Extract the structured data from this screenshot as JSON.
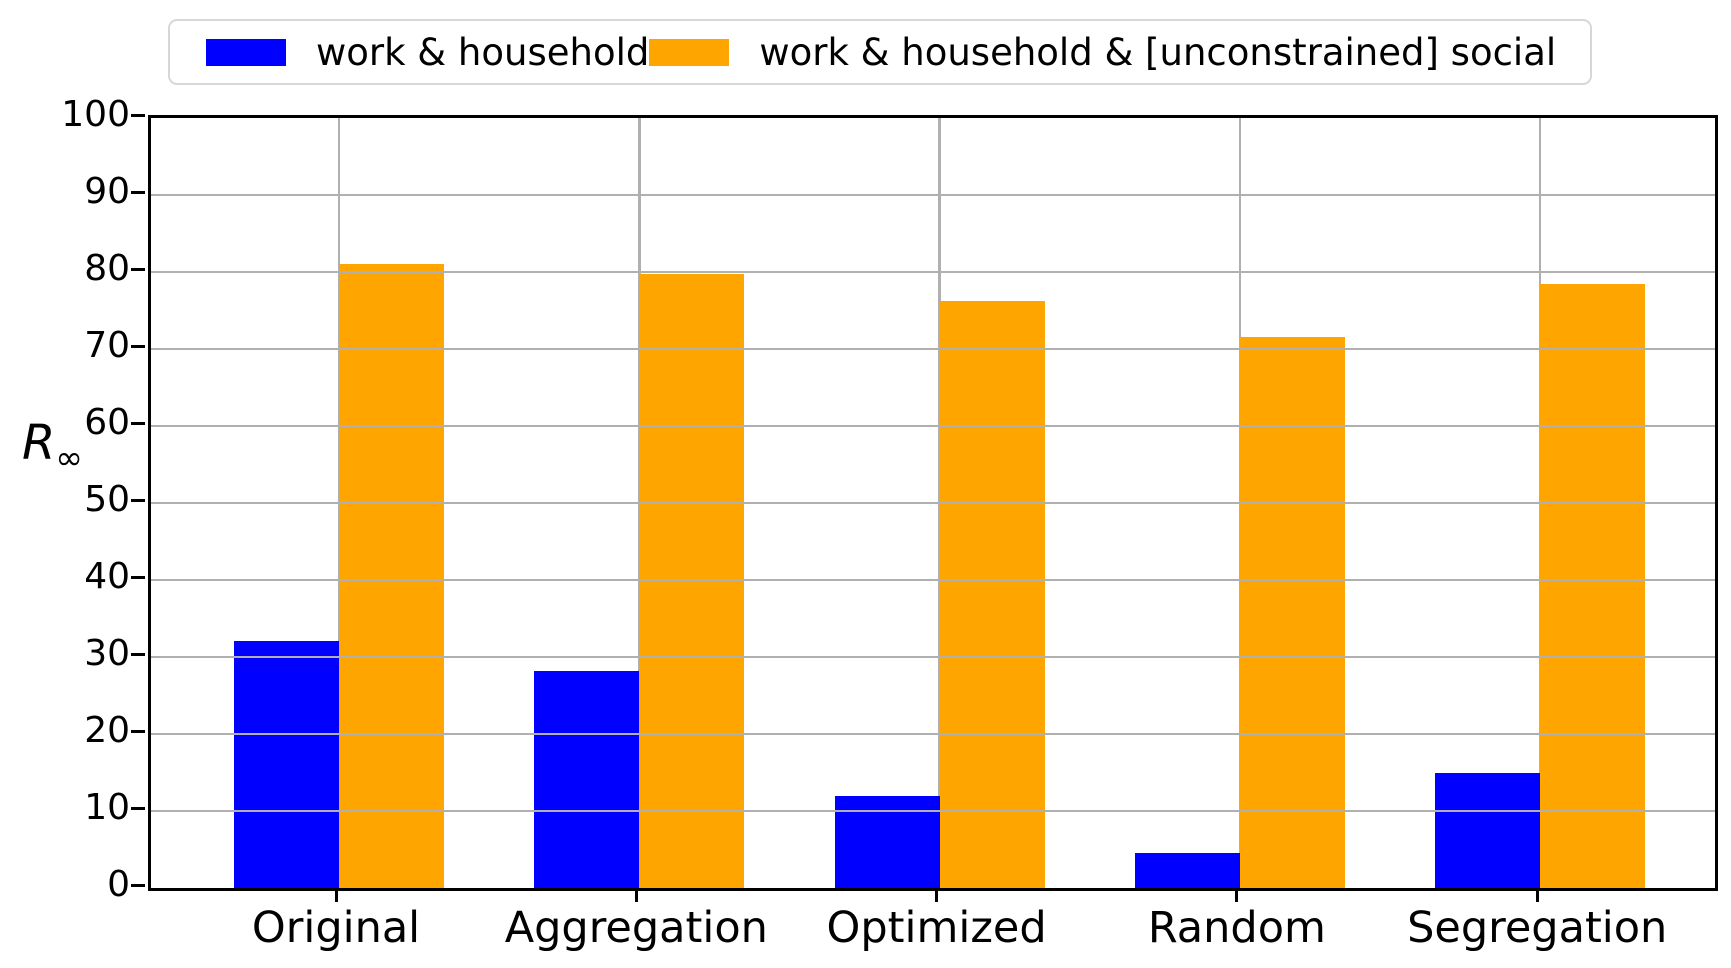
{
  "figure": {
    "background": "#ffffff"
  },
  "chart_data": {
    "type": "bar",
    "categories": [
      "Original",
      "Aggregation",
      "Optimized",
      "Random",
      "Segregation"
    ],
    "series": [
      {
        "name": "work & household",
        "color": "#0000ff",
        "values": [
          32.1,
          28.2,
          12.0,
          4.6,
          14.9
        ]
      },
      {
        "name": "work & household & [unconstrained] social",
        "color": "#ffa500",
        "values": [
          81.0,
          79.7,
          76.2,
          71.6,
          78.4
        ]
      }
    ],
    "ylabel": {
      "base": "R",
      "subscript": "∞"
    },
    "ylim": [
      0,
      100
    ],
    "ytick_step": 10,
    "yticks": [
      0,
      10,
      20,
      30,
      40,
      50,
      60,
      70,
      80,
      90,
      100
    ],
    "grid": true,
    "grid_color": "#b0b0b0",
    "axis_color": "#000000",
    "legend_position": "top"
  }
}
